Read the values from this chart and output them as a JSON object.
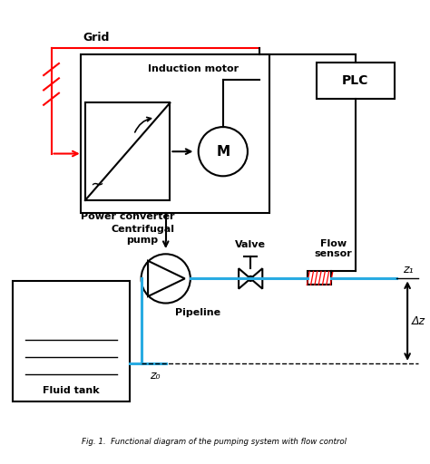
{
  "title": "Fig. 1.  Functional diagram of the pumping system with flow control",
  "bg_color": "#ffffff",
  "line_color": "#000000",
  "red_color": "#ff0000",
  "blue_color": "#29abe2",
  "grid_label": "Grid",
  "plc_label": "PLC",
  "motor_label": "Induction motor",
  "m_label": "M",
  "converter_label": "Power converter",
  "pump_label": "Centrifugal\npump",
  "valve_label": "Valve",
  "sensor_label": "Flow\nsensor",
  "pipeline_label": "Pipeline",
  "tank_label": "Fluid tank",
  "z0_label": "z₀",
  "z1_label": "z₁",
  "dz_label": "Δz"
}
